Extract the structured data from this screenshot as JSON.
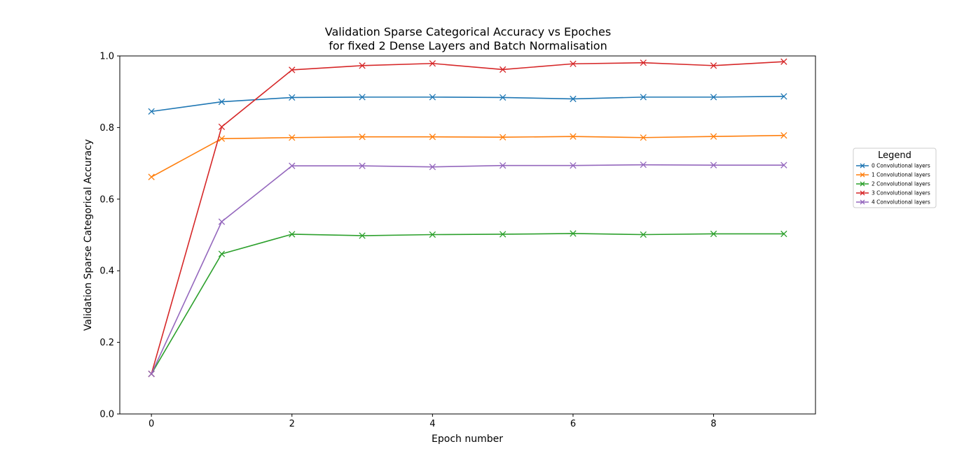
{
  "chart_data": {
    "type": "line",
    "title_line1": "Validation Sparse Categorical Accuracy vs Epoches",
    "title_line2": "for fixed 2 Dense Layers and Batch Normalisation",
    "xlabel": "Epoch number",
    "ylabel": "Validation Sparse Categorical Accuracy",
    "xlim": [
      -0.45,
      9.45
    ],
    "ylim": [
      0.0,
      1.0
    ],
    "xticks": [
      0,
      2,
      4,
      6,
      8
    ],
    "yticks": [
      0.0,
      0.2,
      0.4,
      0.6,
      0.8,
      1.0
    ],
    "ytick_labels": [
      "0.0",
      "0.2",
      "0.4",
      "0.6",
      "0.8",
      "1.0"
    ],
    "grid": false,
    "marker": "x",
    "legend": {
      "title": "Legend",
      "placement": "outside-right"
    },
    "x": [
      0,
      1,
      2,
      3,
      4,
      5,
      6,
      7,
      8,
      9
    ],
    "series": [
      {
        "name": "0 Convolutional layers",
        "color": "#1f77b4",
        "values": [
          0.845,
          0.872,
          0.884,
          0.885,
          0.885,
          0.884,
          0.88,
          0.885,
          0.885,
          0.887
        ]
      },
      {
        "name": "1 Convolutional layers",
        "color": "#ff7f0e",
        "values": [
          0.662,
          0.769,
          0.772,
          0.774,
          0.774,
          0.773,
          0.775,
          0.772,
          0.775,
          0.778
        ]
      },
      {
        "name": "2 Convolutional layers",
        "color": "#2ca02c",
        "values": [
          0.112,
          0.447,
          0.502,
          0.498,
          0.501,
          0.502,
          0.504,
          0.501,
          0.503,
          0.503
        ]
      },
      {
        "name": "3 Convolutional layers",
        "color": "#d62728",
        "values": [
          0.112,
          0.802,
          0.961,
          0.973,
          0.979,
          0.962,
          0.978,
          0.981,
          0.973,
          0.984
        ]
      },
      {
        "name": "4 Convolutional layers",
        "color": "#9467bd",
        "values": [
          0.112,
          0.537,
          0.693,
          0.693,
          0.69,
          0.694,
          0.694,
          0.696,
          0.695,
          0.695
        ]
      }
    ]
  }
}
